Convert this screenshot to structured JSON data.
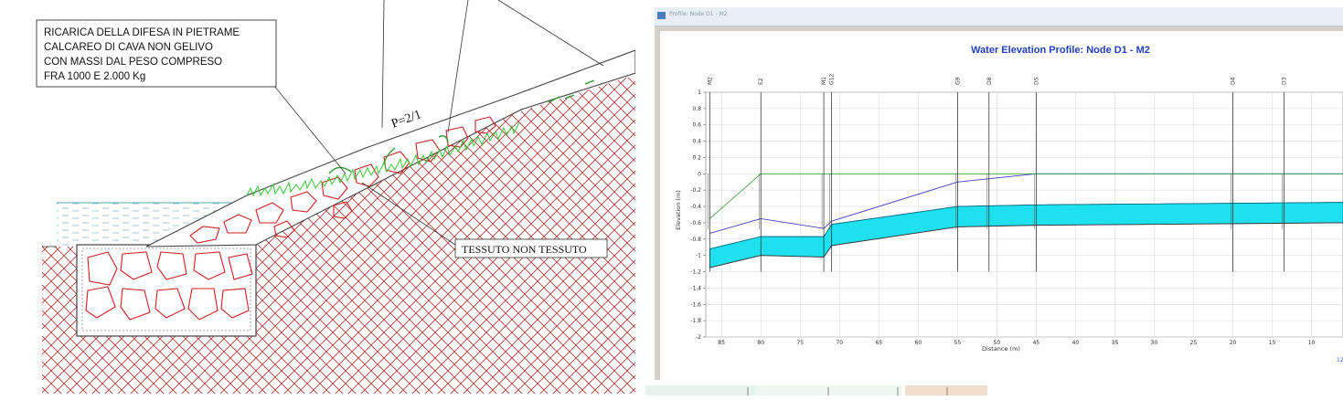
{
  "left": {
    "note_lines": [
      "RICARICA DELLA DIFESA IN PIETRAME",
      "CALCAREO DI CAVA NON GELIVO",
      "CON MASSI DAL PESO COMPRESO",
      "FRA 1000 E 2.000 Kg"
    ],
    "slope_label": "P=2/1",
    "fabric_label": "TESSUTO NON TESSUTO"
  },
  "right": {
    "window_title": "Profile: Node D1 - M2",
    "chart_title": "Water Elevation Profile: Node D1 - M2",
    "ylabel": "Elevation (m)",
    "xlabel": "Distance (m)",
    "corner_mark": "12"
  },
  "chart_data": {
    "type": "area",
    "title": "Water Elevation Profile: Node D1 - M2",
    "xlabel": "Distance (m)",
    "ylabel": "Elevation (m)",
    "xlim": [
      87,
      6
    ],
    "ylim": [
      -2,
      1
    ],
    "x_ticks": [
      85,
      80,
      75,
      70,
      65,
      60,
      55,
      50,
      45,
      40,
      35,
      30,
      25,
      20,
      15,
      10
    ],
    "y_ticks": [
      1,
      0.8,
      0.6,
      0.4,
      0.2,
      0,
      -0.2,
      -0.4,
      -0.6,
      -0.8,
      -1,
      -1.2,
      -1.4,
      -1.6,
      -1.8,
      -2
    ],
    "nodes": [
      {
        "name": "M2",
        "x": 86.5
      },
      {
        "name": "E2",
        "x": 80
      },
      {
        "name": "M1",
        "x": 72
      },
      {
        "name": "G12",
        "x": 71
      },
      {
        "name": "G9",
        "x": 55
      },
      {
        "name": "D8",
        "x": 51
      },
      {
        "name": "D5",
        "x": 45
      },
      {
        "name": "D4",
        "x": 20
      },
      {
        "name": "D3",
        "x": 13.5
      }
    ],
    "series": [
      {
        "points": [
          [
            86.5,
            -1.15
          ],
          [
            80,
            -1.0
          ],
          [
            72,
            -1.02
          ],
          [
            71,
            -0.88
          ],
          [
            55,
            -0.65
          ],
          [
            45,
            -0.63
          ],
          [
            6,
            -0.6
          ]
        ]
      },
      {
        "points": [
          [
            86.5,
            -0.92
          ],
          [
            80,
            -0.77
          ],
          [
            72,
            -0.77
          ],
          [
            71,
            -0.62
          ],
          [
            55,
            -0.4
          ],
          [
            45,
            -0.38
          ],
          [
            6,
            -0.35
          ]
        ]
      },
      {
        "points": [
          [
            86.5,
            -0.73
          ],
          [
            80,
            -0.55
          ],
          [
            72,
            -0.67
          ],
          [
            71,
            -0.58
          ],
          [
            55,
            -0.1
          ],
          [
            45,
            0.0
          ],
          [
            6,
            0.0
          ]
        ]
      },
      {
        "points": [
          [
            86.5,
            -0.55
          ],
          [
            80,
            0.0
          ],
          [
            6,
            0.0
          ]
        ]
      }
    ]
  }
}
